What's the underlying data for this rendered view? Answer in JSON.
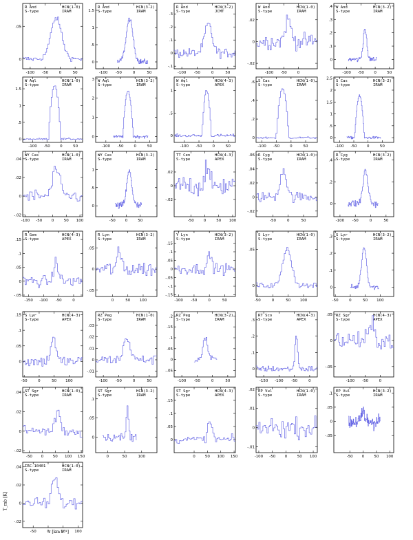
{
  "figure": {
    "ylabel": "T_mb [K]",
    "xlabel": "v [km s⁻¹]"
  },
  "style": {
    "spectrum_color": "#6a6ae6"
  },
  "chart_data": [
    {
      "type": "line",
      "star": "R And",
      "cls": "S-type",
      "line": "HCN(1-0)",
      "tel": "IRAM",
      "xlim": [
        -125,
        75
      ],
      "ylim": [
        -0.015,
        0.085
      ],
      "xticks": [
        -100,
        -50,
        0,
        50
      ],
      "yticks": [
        0,
        0.05
      ],
      "peak": 0.063,
      "vc": -15,
      "w": 18,
      "shape": "g",
      "noise": 0.004,
      "dv": 4,
      "x0": -125,
      "x1": 75
    },
    {
      "type": "line",
      "star": "R And",
      "cls": "S-type",
      "line": "HCN(3-2)",
      "tel": "IRAM",
      "xlim": [
        -125,
        75
      ],
      "ylim": [
        -0.2,
        1.7
      ],
      "xticks": [
        -100,
        -50,
        0,
        50
      ],
      "yticks": [
        0,
        0.5,
        1,
        1.5
      ],
      "peak": 1.25,
      "vc": -15,
      "w": 11,
      "shape": "g",
      "noise": 0.08,
      "dv": 1.5,
      "x0": -55,
      "x1": 45
    },
    {
      "type": "line",
      "star": "R And",
      "cls": "S-type",
      "line": "HCN(3-2)",
      "tel": "JCMT",
      "xlim": [
        -125,
        75
      ],
      "ylim": [
        -0.12,
        0.38
      ],
      "xticks": [
        -100,
        -50,
        0,
        50
      ],
      "yticks": [
        -0.1,
        0,
        0.1,
        0.2,
        0.3
      ],
      "peak": 0.22,
      "vc": -15,
      "w": 12,
      "shape": "g",
      "noise": 0.035,
      "dv": 3,
      "x0": -125,
      "x1": 75
    },
    {
      "type": "line",
      "star": "W And",
      "cls": "S-type",
      "line": "HCN(1-0)",
      "tel": "IRAM",
      "xlim": [
        -145,
        65
      ],
      "ylim": [
        -0.025,
        0.035
      ],
      "xticks": [
        -100,
        -50,
        0
      ],
      "yticks": [
        -0.02,
        0,
        0.02
      ],
      "peak": 0.02,
      "vc": -37,
      "w": 10,
      "shape": "g",
      "noise": 0.007,
      "dv": 4,
      "x0": -145,
      "x1": 65
    },
    {
      "type": "line",
      "star": "W And",
      "cls": "S-type",
      "line": "HCN(3-2)",
      "tel": "IRAM",
      "xlim": [
        -145,
        65
      ],
      "ylim": [
        -0.07,
        0.42
      ],
      "xticks": [
        -100,
        -50,
        0,
        50
      ],
      "yticks": [
        0,
        0.1,
        0.2,
        0.3,
        0.4
      ],
      "peak": 0.23,
      "vc": -37,
      "w": 6,
      "shape": "g",
      "noise": 0.02,
      "dv": 2,
      "x0": -95,
      "x1": 5
    },
    {
      "type": "line",
      "star": "W Aql",
      "cls": "S-type",
      "line": "HCN(1-0)",
      "tel": "IRAM",
      "xlim": [
        -135,
        75
      ],
      "ylim": [
        -0.1,
        1.85
      ],
      "xticks": [
        -100,
        -50,
        0,
        50
      ],
      "yticks": [
        0,
        0.5,
        1,
        1.5
      ],
      "peak": 1.6,
      "vc": -25,
      "w": 22,
      "shape": "p",
      "noise": 0.025,
      "dv": 4,
      "x0": -135,
      "x1": 75
    },
    {
      "type": "line",
      "star": "W Aql",
      "cls": "S-type",
      "line": "HCN(3-2)",
      "tel": "IRAM",
      "xlim": [
        -135,
        75
      ],
      "ylim": [
        -0.3,
        3.1
      ],
      "xticks": [
        -100,
        -50,
        0,
        50
      ],
      "yticks": [
        0,
        1,
        2,
        3
      ],
      "peak": 2.35,
      "vc": -25,
      "w": 18,
      "shape": "p",
      "noise": 0.07,
      "dv": 2,
      "x0": -75,
      "x1": 45
    },
    {
      "type": "line",
      "star": "W Aql",
      "cls": "S-type",
      "line": "HCN(4-3)",
      "tel": "APEX",
      "xlim": [
        -135,
        75
      ],
      "ylim": [
        -0.15,
        1.3
      ],
      "xticks": [
        -100,
        -50,
        0,
        50
      ],
      "yticks": [
        0,
        0.5,
        1
      ],
      "peak": 1.0,
      "vc": -25,
      "w": 16,
      "shape": "p",
      "noise": 0.03,
      "dv": 3,
      "x0": -135,
      "x1": 75
    },
    {
      "type": "line",
      "star": "S Cas",
      "cls": "S-type",
      "line": "HCN(1-0)",
      "tel": "IRAM",
      "xlim": [
        -120,
        90
      ],
      "ylim": [
        -0.05,
        0.65
      ],
      "xticks": [
        -100,
        -50,
        0,
        50
      ],
      "yticks": [
        0,
        0.2,
        0.4,
        0.6
      ],
      "peak": 0.52,
      "vc": -31,
      "w": 22,
      "shape": "p",
      "noise": 0.01,
      "dv": 4,
      "x0": -120,
      "x1": 90
    },
    {
      "type": "line",
      "star": "S Cas",
      "cls": "S-type",
      "line": "HCN(3-2)",
      "tel": "IRAM",
      "xlim": [
        -120,
        90
      ],
      "ylim": [
        -0.2,
        2.55
      ],
      "xticks": [
        -100,
        -50,
        0,
        50
      ],
      "yticks": [
        0,
        0.5,
        1,
        1.5,
        2,
        2.5
      ],
      "peak": 1.75,
      "vc": -31,
      "w": 17,
      "shape": "p",
      "noise": 0.05,
      "dv": 2,
      "x0": -75,
      "x1": 45
    },
    {
      "type": "line",
      "star": "WY Cas",
      "cls": "S-type",
      "line": "HCN(1-0)",
      "tel": "IRAM",
      "xlim": [
        -110,
        110
      ],
      "ylim": [
        -0.022,
        0.048
      ],
      "xticks": [
        -100,
        -50,
        0,
        50,
        100
      ],
      "yticks": [
        -0.02,
        0,
        0.02,
        0.04
      ],
      "peak": 0.03,
      "vc": 10,
      "w": 12,
      "shape": "g",
      "noise": 0.007,
      "dv": 5,
      "x0": -110,
      "x1": 110
    },
    {
      "type": "line",
      "star": "WY Cas",
      "cls": "S-type",
      "line": "HCN(3-2)",
      "tel": "IRAM",
      "xlim": [
        -110,
        110
      ],
      "ylim": [
        -0.3,
        1.5
      ],
      "xticks": [
        -50,
        0,
        50
      ],
      "yticks": [
        0,
        0.5,
        1
      ],
      "peak": 0.95,
      "vc": 10,
      "w": 9,
      "shape": "g",
      "noise": 0.1,
      "dv": 1.5,
      "x0": -40,
      "x1": 55
    },
    {
      "type": "line",
      "star": "TT Cen",
      "cls": "S-type",
      "line": "HCN(4-3)",
      "tel": "APEX",
      "xlim": [
        -110,
        110
      ],
      "ylim": [
        -0.045,
        0.05
      ],
      "xticks": [
        -50,
        0,
        50,
        100
      ],
      "yticks": [
        -0.02,
        0,
        0.02
      ],
      "peak": 0.03,
      "vc": 5,
      "w": 7,
      "shape": "g",
      "noise": 0.015,
      "dv": 4,
      "x0": -110,
      "x1": 110
    },
    {
      "type": "line",
      "star": "R Cyg",
      "cls": "S-type",
      "line": "HCN(1-0)",
      "tel": "IRAM",
      "xlim": [
        -105,
        95
      ],
      "ylim": [
        -0.028,
        0.065
      ],
      "xticks": [
        -50,
        0,
        50
      ],
      "yticks": [
        -0.02,
        0,
        0.02,
        0.04,
        0.06
      ],
      "peak": 0.04,
      "vc": -18,
      "w": 10,
      "shape": "g",
      "noise": 0.007,
      "dv": 4,
      "x0": -105,
      "x1": 95
    },
    {
      "type": "line",
      "star": "R Cyg",
      "cls": "S-type",
      "line": "HCN(3-2)",
      "tel": "IRAM",
      "xlim": [
        -120,
        75
      ],
      "ylim": [
        -0.12,
        0.48
      ],
      "xticks": [
        -100,
        -50,
        0,
        50
      ],
      "yticks": [
        0,
        0.2,
        0.4
      ],
      "peak": 0.3,
      "vc": -18,
      "w": 8,
      "shape": "g",
      "noise": 0.035,
      "dv": 2,
      "x0": -75,
      "x1": 25
    },
    {
      "type": "line",
      "star": "R Gem",
      "cls": "S-type",
      "line": "HCN(4-3)",
      "tel": "APEX",
      "xlim": [
        -170,
        30
      ],
      "ylim": [
        -0.055,
        0.18
      ],
      "xticks": [
        -150,
        -100,
        -50,
        0
      ],
      "yticks": [
        -0.05,
        0,
        0.05,
        0.1,
        0.15
      ],
      "peak": 0.075,
      "vc": -60,
      "w": 7,
      "shape": "g",
      "noise": 0.02,
      "dv": 4,
      "x0": -170,
      "x1": 30
    },
    {
      "type": "line",
      "star": "R Lyn",
      "cls": "S-type",
      "line": "HCN(3-2)",
      "tel": "IRAM",
      "xlim": [
        -55,
        145
      ],
      "ylim": [
        -0.065,
        0.09
      ],
      "xticks": [
        0,
        50,
        100
      ],
      "yticks": [
        -0.05,
        0,
        0.05
      ],
      "peak": 0.035,
      "vc": 20,
      "w": 8,
      "shape": "g",
      "noise": 0.018,
      "dv": 4,
      "x0": -55,
      "x1": 145
    },
    {
      "type": "line",
      "star": "Y Lyn",
      "cls": "S-type",
      "line": "HCN(3-2)",
      "tel": "IRAM",
      "xlim": [
        -115,
        85
      ],
      "ylim": [
        -0.16,
        0.22
      ],
      "xticks": [
        -100,
        -50,
        0,
        50
      ],
      "yticks": [
        -0.15,
        -0.1,
        -0.05,
        0,
        0.05,
        0.1,
        0.15
      ],
      "peak": 0.08,
      "vc": -1,
      "w": 7,
      "shape": "g",
      "noise": 0.03,
      "dv": 4,
      "x0": -115,
      "x1": 85
    },
    {
      "type": "line",
      "star": "S Lyr",
      "cls": "S-type",
      "line": "HCN(1-0)",
      "tel": "IRAM",
      "xlim": [
        -55,
        145
      ],
      "ylim": [
        -0.015,
        0.075
      ],
      "xticks": [
        -50,
        0,
        50,
        100
      ],
      "yticks": [
        0,
        0.05
      ],
      "peak": 0.052,
      "vc": 45,
      "w": 14,
      "shape": "g",
      "noise": 0.004,
      "dv": 4,
      "x0": -55,
      "x1": 145
    },
    {
      "type": "line",
      "star": "S Lyr",
      "cls": "S-type",
      "line": "HCN(3-2)",
      "tel": "IRAM",
      "xlim": [
        -55,
        145
      ],
      "ylim": [
        -0.055,
        0.33
      ],
      "xticks": [
        -50,
        0,
        50,
        100
      ],
      "yticks": [
        0,
        0.1,
        0.2,
        0.3
      ],
      "peak": 0.24,
      "vc": 45,
      "w": 8,
      "shape": "g",
      "noise": 0.015,
      "dv": 2,
      "x0": 0,
      "x1": 95
    },
    {
      "type": "line",
      "star": "S Lyr",
      "cls": "S-type",
      "line": "HCN(4-3)",
      "tel": "APEX",
      "xlim": [
        -55,
        145
      ],
      "ylim": [
        -0.05,
        0.16
      ],
      "xticks": [
        -50,
        0,
        50,
        100
      ],
      "yticks": [
        0,
        0.05,
        0.1,
        0.15
      ],
      "peak": 0.08,
      "vc": 45,
      "w": 8,
      "shape": "g",
      "noise": 0.018,
      "dv": 4,
      "x0": -55,
      "x1": 145
    },
    {
      "type": "line",
      "star": "RZ Peg",
      "cls": "S-type",
      "line": "HCN(1-0)",
      "tel": "IRAM",
      "xlim": [
        -125,
        75
      ],
      "ylim": [
        -0.015,
        0.042
      ],
      "xticks": [
        -100,
        -50,
        0,
        50
      ],
      "yticks": [
        -0.01,
        0,
        0.01,
        0.02,
        0.03
      ],
      "peak": 0.02,
      "vc": -25,
      "w": 10,
      "shape": "g",
      "noise": 0.004,
      "dv": 4,
      "x0": -125,
      "x1": 75
    },
    {
      "type": "line",
      "star": "RZ Peg",
      "cls": "S-type",
      "line": "HCN(3-2)",
      "tel": "IRAM",
      "xlim": [
        -125,
        75
      ],
      "ylim": [
        -0.08,
        0.22
      ],
      "xticks": [
        -100,
        -50,
        0,
        50
      ],
      "yticks": [
        -0.05,
        0,
        0.05,
        0.1,
        0.15,
        0.2
      ],
      "peak": 0.1,
      "vc": -25,
      "w": 8,
      "shape": "g",
      "noise": 0.02,
      "dv": 3,
      "x0": -60,
      "x1": 15
    },
    {
      "type": "line",
      "star": "RT Sco",
      "cls": "S-type",
      "line": "HCN(4-3)",
      "tel": "APEX",
      "xlim": [
        -175,
        25
      ],
      "ylim": [
        -0.05,
        0.35
      ],
      "xticks": [
        -150,
        -100,
        -50,
        0
      ],
      "yticks": [
        0,
        0.1,
        0.2,
        0.3
      ],
      "peak": 0.22,
      "vc": -45,
      "w": 4,
      "shape": "g",
      "noise": 0.018,
      "dv": 3,
      "x0": -175,
      "x1": 25
    },
    {
      "type": "line",
      "star": "RZ Sgr",
      "cls": "S-type",
      "line": "HCN(4-3)",
      "tel": "APEX",
      "xlim": [
        -155,
        45
      ],
      "ylim": [
        -0.07,
        0.055
      ],
      "xticks": [
        -100,
        -50,
        0
      ],
      "yticks": [
        -0.05,
        0,
        0.05
      ],
      "peak": 0.025,
      "vc": -30,
      "w": 10,
      "shape": "g",
      "noise": 0.018,
      "dv": 4,
      "x0": -155,
      "x1": 45
    },
    {
      "type": "line",
      "star": "ST Sgr",
      "cls": "S-type",
      "line": "HCN(1-0)",
      "tel": "IRAM",
      "xlim": [
        -75,
        155
      ],
      "ylim": [
        -0.022,
        0.045
      ],
      "xticks": [
        -50,
        0,
        50,
        100,
        150
      ],
      "yticks": [
        -0.02,
        0,
        0.02,
        0.04
      ],
      "peak": 0.02,
      "vc": 57,
      "w": 10,
      "shape": "g",
      "noise": 0.007,
      "dv": 5,
      "x0": -75,
      "x1": 155
    },
    {
      "type": "line",
      "star": "ST Sgr",
      "cls": "S-type",
      "line": "HCN(3-2)",
      "tel": "IRAM",
      "xlim": [
        -35,
        145
      ],
      "ylim": [
        -0.04,
        0.13
      ],
      "xticks": [
        0,
        50,
        100
      ],
      "yticks": [
        0,
        0.05,
        0.1
      ],
      "peak": 0.08,
      "vc": 57,
      "w": 3,
      "shape": "g",
      "noise": 0.01,
      "dv": 3,
      "x0": -15,
      "x1": 85
    },
    {
      "type": "line",
      "star": "ST Sgr",
      "cls": "S-type",
      "line": "HCN(4-3)",
      "tel": "APEX",
      "xlim": [
        -75,
        155
      ],
      "ylim": [
        -0.05,
        0.2
      ],
      "xticks": [
        0,
        50,
        100,
        150
      ],
      "yticks": [
        0,
        0.05,
        0.1,
        0.15
      ],
      "peak": 0.07,
      "vc": 57,
      "w": 8,
      "shape": "g",
      "noise": 0.015,
      "dv": 5,
      "x0": -75,
      "x1": 155
    },
    {
      "type": "line",
      "star": "EP Vul",
      "cls": "S-type",
      "line": "HCN(1-0)",
      "tel": "IRAM",
      "xlim": [
        -110,
        115
      ],
      "ylim": [
        -0.013,
        0.021
      ],
      "xticks": [
        -100,
        -50,
        0,
        50,
        100
      ],
      "yticks": [
        -0.01,
        0,
        0.01,
        0.02
      ],
      "peak": 0.0,
      "vc": 0,
      "w": 10,
      "shape": "g",
      "noise": 0.005,
      "dv": 5,
      "x0": -110,
      "x1": 115
    },
    {
      "type": "line",
      "star": "EP Vul",
      "cls": "S-type",
      "line": "HCN(3-2)",
      "tel": "IRAM",
      "xlim": [
        -110,
        115
      ],
      "ylim": [
        -0.11,
        0.12
      ],
      "xticks": [
        -50,
        0,
        50,
        100
      ],
      "yticks": [
        -0.05,
        0,
        0.05,
        0.1
      ],
      "peak": 0.04,
      "vc": 0,
      "w": 4,
      "shape": "g",
      "noise": 0.03,
      "dv": 1.5,
      "x0": -55,
      "x1": 65
    },
    {
      "type": "line",
      "star": "IRC-10401",
      "cls": "S-type",
      "line": "HCN(1-0)",
      "tel": "IRAM",
      "xlim": [
        -85,
        115
      ],
      "ylim": [
        -0.027,
        0.045
      ],
      "xticks": [
        -50,
        0,
        50,
        100
      ],
      "yticks": [
        -0.02,
        0,
        0.02,
        0.04
      ],
      "peak": 0.025,
      "vc": 20,
      "w": 20,
      "shape": "p",
      "noise": 0.006,
      "dv": 5,
      "x0": -85,
      "x1": 115
    }
  ]
}
